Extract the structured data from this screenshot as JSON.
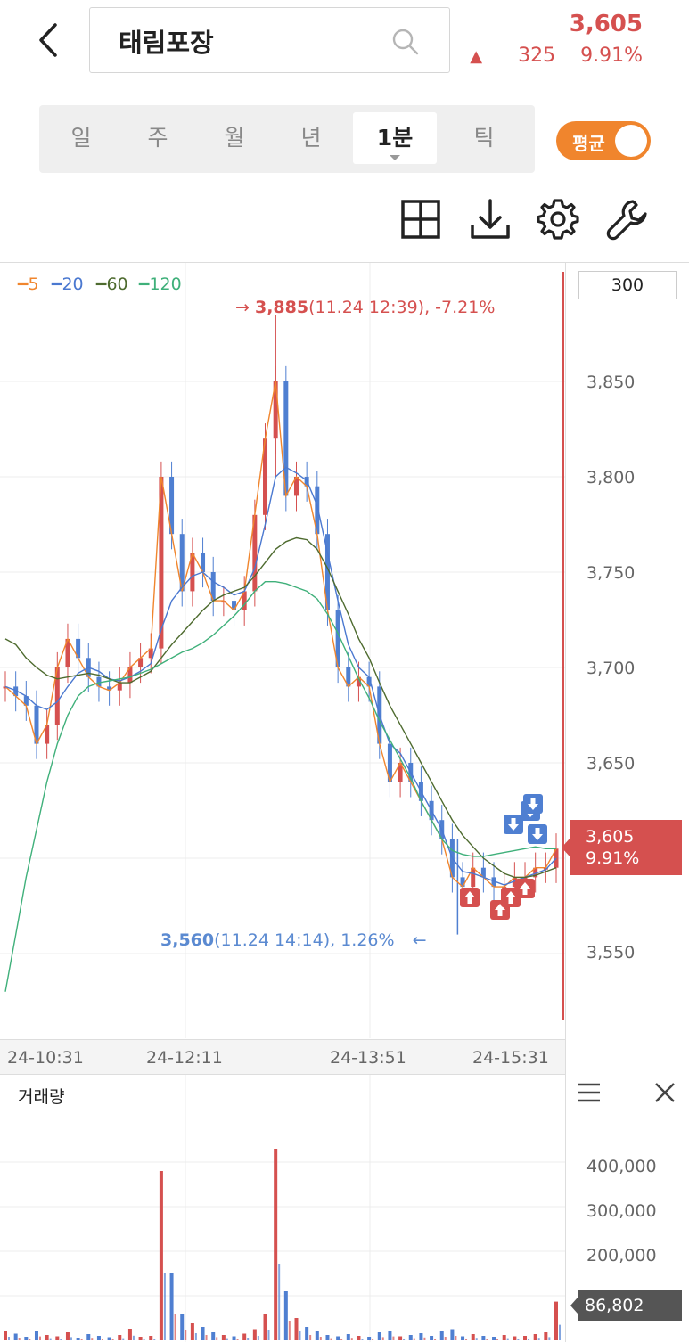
{
  "header": {
    "stock_name": "태림포장",
    "price": "3,605",
    "change_symbol": "▲",
    "change_amount": "325",
    "change_percent": "9.91%"
  },
  "period_tabs": [
    {
      "label": "일",
      "active": false
    },
    {
      "label": "주",
      "active": false
    },
    {
      "label": "월",
      "active": false
    },
    {
      "label": "년",
      "active": false
    },
    {
      "label": "1분",
      "active": true
    },
    {
      "label": "틱",
      "active": false
    }
  ],
  "average_toggle": {
    "label": "평균",
    "on": true
  },
  "tools": [
    "grid-layout-icon",
    "download-icon",
    "settings-gear-icon",
    "wrench-icon"
  ],
  "colors": {
    "up": "#d5504f",
    "down": "#4f7fd1",
    "ma5": "#f0852d",
    "ma20": "#4a78d0",
    "ma60": "#4e6b2f",
    "ma120": "#3fb07a"
  },
  "chart": {
    "count": "300",
    "legend": [
      {
        "label": "5",
        "color": "#f0852d"
      },
      {
        "label": "20",
        "color": "#4a78d0"
      },
      {
        "label": "60",
        "color": "#4e6b2f"
      },
      {
        "label": "120",
        "color": "#3fb07a"
      }
    ],
    "y_ticks": [
      "3,850",
      "3,800",
      "3,750",
      "3,700",
      "3,650",
      "3,550"
    ],
    "x_ticks": [
      "24-10:31",
      "24-12:11",
      "24-13:51",
      "24-15:31"
    ],
    "high_marker": {
      "arrow": "→",
      "value": "3,885",
      "detail": "(11.24 12:39), -7.21%"
    },
    "low_marker": {
      "value": "3,560",
      "detail": "(11.24 14:14), 1.26%",
      "arrow": "←"
    },
    "current_tag": {
      "price": "3,605",
      "percent": "9.91%"
    }
  },
  "chart_data": {
    "type": "candlestick",
    "ylim": [
      3510,
      3905
    ],
    "series": [
      {
        "name": "5",
        "values": [
          3690,
          3685,
          3680,
          3660,
          3670,
          3700,
          3715,
          3705,
          3695,
          3690,
          3688,
          3692,
          3700,
          3705,
          3710,
          3800,
          3770,
          3740,
          3760,
          3750,
          3735,
          3735,
          3730,
          3740,
          3780,
          3820,
          3850,
          3790,
          3800,
          3795,
          3770,
          3730,
          3700,
          3690,
          3695,
          3690,
          3660,
          3640,
          3650,
          3640,
          3630,
          3620,
          3610,
          3590,
          3585,
          3595,
          3590,
          3585,
          3585,
          3590,
          3590,
          3595,
          3595,
          3605
        ]
      },
      {
        "name": "20",
        "values": [
          3690,
          3688,
          3685,
          3680,
          3678,
          3682,
          3690,
          3697,
          3700,
          3698,
          3694,
          3693,
          3695,
          3698,
          3702,
          3720,
          3735,
          3742,
          3748,
          3750,
          3745,
          3742,
          3738,
          3740,
          3752,
          3775,
          3800,
          3805,
          3802,
          3798,
          3785,
          3760,
          3735,
          3712,
          3700,
          3695,
          3675,
          3660,
          3655,
          3645,
          3635,
          3625,
          3615,
          3600,
          3593,
          3592,
          3590,
          3588,
          3586,
          3588,
          3590,
          3592,
          3594,
          3600
        ]
      },
      {
        "name": "60",
        "values": [
          3715,
          3712,
          3705,
          3700,
          3696,
          3694,
          3695,
          3696,
          3697,
          3696,
          3694,
          3692,
          3692,
          3695,
          3698,
          3705,
          3712,
          3718,
          3724,
          3730,
          3735,
          3738,
          3740,
          3742,
          3748,
          3755,
          3762,
          3766,
          3768,
          3767,
          3762,
          3752,
          3740,
          3728,
          3715,
          3705,
          3692,
          3680,
          3670,
          3660,
          3650,
          3640,
          3630,
          3620,
          3612,
          3606,
          3600,
          3596,
          3592,
          3590,
          3590,
          3591,
          3593,
          3595
        ]
      },
      {
        "name": "120",
        "values": [
          3530,
          3560,
          3590,
          3615,
          3640,
          3660,
          3675,
          3685,
          3690,
          3692,
          3693,
          3694,
          3695,
          3697,
          3699,
          3702,
          3705,
          3708,
          3710,
          3713,
          3717,
          3722,
          3727,
          3733,
          3740,
          3745,
          3745,
          3744,
          3742,
          3740,
          3736,
          3728,
          3718,
          3706,
          3694,
          3684,
          3672,
          3662,
          3652,
          3642,
          3630,
          3620,
          3610,
          3604,
          3602,
          3601,
          3601,
          3602,
          3603,
          3604,
          3605,
          3606,
          3605,
          3605
        ]
      }
    ],
    "high": 3885,
    "low": 3560,
    "current": 3605,
    "volume": {
      "ylim": [
        0,
        480000
      ],
      "y_ticks": [
        "400,000",
        "300,000",
        "200,000"
      ],
      "current": "86,802",
      "values": [
        20000,
        15000,
        8000,
        22000,
        12000,
        9000,
        18000,
        6000,
        14000,
        10000,
        7000,
        12000,
        26000,
        8000,
        10000,
        380000,
        150000,
        60000,
        40000,
        30000,
        18000,
        12000,
        9000,
        15000,
        25000,
        60000,
        430000,
        110000,
        50000,
        30000,
        20000,
        12000,
        9000,
        14000,
        10000,
        8000,
        18000,
        22000,
        9000,
        12000,
        16000,
        10000,
        20000,
        25000,
        9000,
        14000,
        10000,
        8000,
        12000,
        9000,
        10000,
        14000,
        18000,
        86802
      ]
    }
  }
}
